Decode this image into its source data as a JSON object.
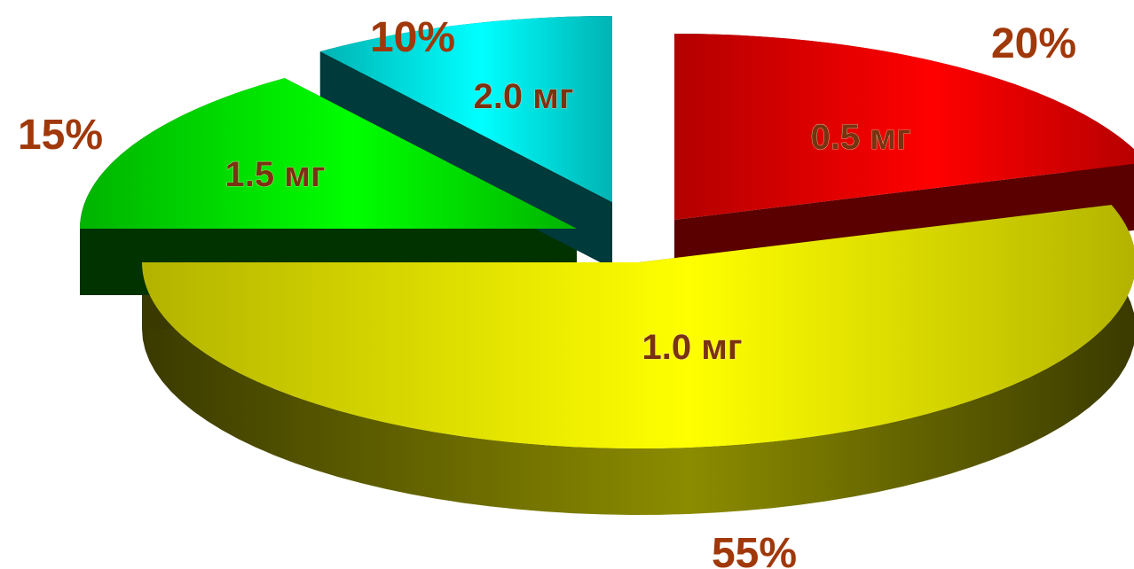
{
  "chart_data": {
    "type": "pie",
    "style": "3d-exploded",
    "title": "",
    "legend": "none",
    "slices": [
      {
        "label": "0.5 мг",
        "value": 20,
        "percent_label": "20%",
        "color": "#ff0000",
        "color_dark": "#5a0000"
      },
      {
        "label": "1.0 мг",
        "value": 55,
        "percent_label": "55%",
        "color": "#ffff00",
        "color_dark": "#3a3a00"
      },
      {
        "label": "1.5 мг",
        "value": 15,
        "percent_label": "15%",
        "color": "#00ff00",
        "color_dark": "#003300"
      },
      {
        "label": "2.0 мг",
        "value": 10,
        "percent_label": "10%",
        "color": "#00ffff",
        "color_dark": "#003a3a"
      }
    ]
  }
}
